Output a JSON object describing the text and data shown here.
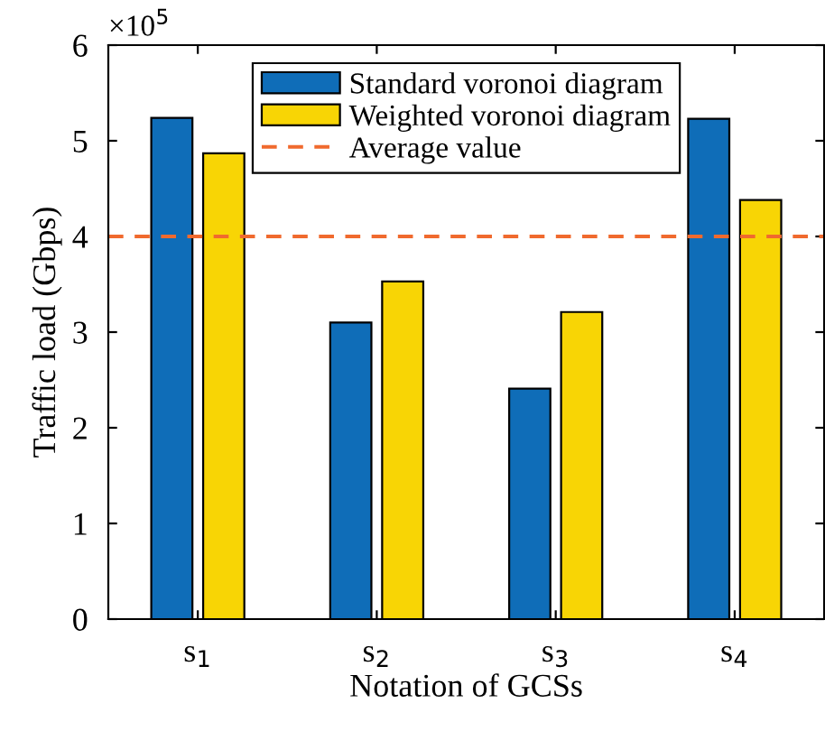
{
  "chart_data": {
    "type": "bar",
    "xlabel": "Notation of GCSs",
    "ylabel": "Traffic load (Gbps)",
    "categories": [
      "s$_{1}$",
      "s$_{2}$",
      "s$_{3}$",
      "s$_{4}$"
    ],
    "series": [
      {
        "name": "Standard voronoi diagram",
        "color": "#0f6db8",
        "values": [
          5.24,
          3.1,
          2.41,
          5.23
        ]
      },
      {
        "name": "Weighted voronoi diagram",
        "color": "#f8d505",
        "values": [
          4.87,
          3.53,
          3.21,
          4.38
        ]
      }
    ],
    "ref_lines": [
      {
        "axis": "y",
        "value": 4,
        "label": "Average value",
        "color": "#f06a2e",
        "line_style": "dashed"
      }
    ],
    "ylim": [
      0,
      6
    ],
    "yticks": [
      0,
      1,
      2,
      3,
      4,
      5,
      6
    ],
    "annotations": [
      "×10$^{5}$"
    ],
    "legend": "top",
    "grid": false
  }
}
